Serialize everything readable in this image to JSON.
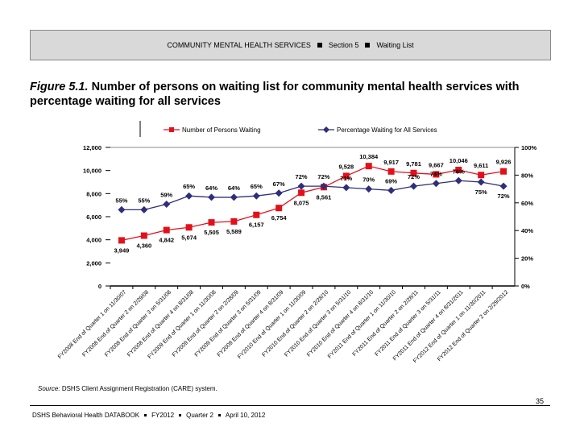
{
  "header": {
    "section": "COMMUNITY MENTAL HEALTH SERVICES",
    "part": "Section 5",
    "topic": "Waiting List"
  },
  "figure": {
    "label": "Figure 5.1.",
    "title": "Number of persons on waiting list for community mental health services with percentage waiting for all services"
  },
  "chart_data": {
    "type": "line",
    "categories": [
      "FY2008 End of Quarter 1 on 11/30/07",
      "FY2008 End of Quarter 2 on 2/29/08",
      "FY2008 End of Quarter 3 on 5/31/08",
      "FY2008 End of Quarter 4 on 8/31/08",
      "FY2009 End of Quarter 1 on 11/30/08",
      "FY2009 End of Quarter 2 on 2/28/09",
      "FY2009 End of Quarter 3 on 5/31/09",
      "FY2009 End of Quarter 4 on 8/31/09",
      "FY2010 End of Quarter 1 on 11/30/09",
      "FY2010 End of Quarter 2 on 2/28/10",
      "FY2010 End of Quarter 3 on 5/31/10",
      "FY2010 End of Quarter 4 on 8/31/10",
      "FY2011 End of Quarter 1 on 11/30/10",
      "FY2011 End of Quarter 2 on 2/28/11",
      "FY2011 End of Quarter 3 on 5/31/11",
      "FY2011 End of Quarter 4 on 8/31/2011",
      "FY2012 End of Quarter 1 on 11/30/2011",
      "FY2012 End of Quarter 2 on 2/29/2012"
    ],
    "series": [
      {
        "name": "Number of Persons Waiting",
        "axis": "left",
        "color": "#e3101b",
        "marker": "square",
        "values": [
          3949,
          4360,
          4842,
          5074,
          5505,
          5589,
          6157,
          6754,
          8075,
          8561,
          9528,
          10384,
          9917,
          9781,
          9667,
          10046,
          9611,
          9926
        ],
        "labels": [
          "3,949",
          "4,360",
          "4,842",
          "5,074",
          "5,505",
          "5,589",
          "6,157",
          "6,754",
          "8,075",
          "8,561",
          "9,528",
          "10,384",
          "9,917",
          "9,781",
          "9,667",
          "10,046",
          "9,611",
          "9,926"
        ]
      },
      {
        "name": "Percentage Waiting for All Services",
        "axis": "right",
        "color": "#2e2e7a",
        "marker": "diamond",
        "values": [
          55,
          55,
          59,
          65,
          64,
          64,
          65,
          67,
          72,
          72,
          71,
          70,
          69,
          72,
          74,
          76,
          75,
          72
        ],
        "labels": [
          "55%",
          "55%",
          "59%",
          "65%",
          "64%",
          "64%",
          "65%",
          "67%",
          "72%",
          "72%",
          "71%",
          "70%",
          "69%",
          "72%",
          "74%",
          "76%",
          "75%",
          "72%"
        ]
      }
    ],
    "left_axis": {
      "range": [
        0,
        12000
      ],
      "ticks": [
        "0",
        "2,000",
        "4,000",
        "6,000",
        "8,000",
        "10,000",
        "12,000"
      ]
    },
    "right_axis": {
      "range": [
        0,
        100
      ],
      "ticks": [
        "0%",
        "20%",
        "40%",
        "60%",
        "80%",
        "100%"
      ]
    },
    "legend": "top",
    "grid": false
  },
  "source": {
    "label": "Source:",
    "text": "DSHS Client Assignment Registration (CARE) system."
  },
  "page_number": "35",
  "footer": {
    "book": "DSHS Behavioral Health DATABOOK",
    "fy": "FY2012",
    "quarter": "Quarter 2",
    "date": "April 10, 2012"
  }
}
